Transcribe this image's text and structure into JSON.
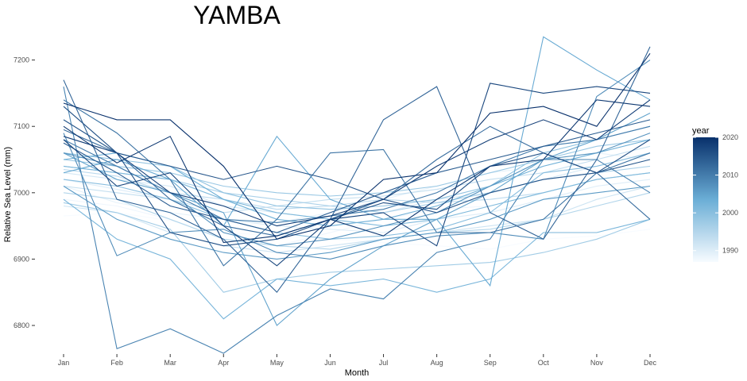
{
  "chart_data": {
    "type": "line",
    "title": "YAMBA",
    "xlabel": "Month",
    "ylabel": "Relative Sea Level (mm)",
    "categories": [
      "Jan",
      "Feb",
      "Mar",
      "Apr",
      "May",
      "Jun",
      "Jul",
      "Aug",
      "Sep",
      "Oct",
      "Nov",
      "Dec"
    ],
    "ylim": [
      6745,
      7245
    ],
    "yticks": [
      6800,
      6900,
      7000,
      7100,
      7200
    ],
    "grid": false,
    "legend": {
      "title": "year",
      "position": "right",
      "ticks": [
        1990,
        2000,
        2010,
        2020
      ],
      "range": [
        1987,
        2020
      ],
      "color_low": "#f7fbff",
      "color_high": "#08306b"
    },
    "series": [
      {
        "year": 1987,
        "values": [
          6965,
          6970,
          6958,
          6940,
          6935,
          6930,
          6925,
          6920,
          6915,
          6930,
          6935,
          6945
        ]
      },
      {
        "year": 1988,
        "values": [
          6990,
          6980,
          6960,
          6930,
          6920,
          6940,
          6960,
          6975,
          6980,
          7000,
          7020,
          7030
        ]
      },
      {
        "year": 1989,
        "values": [
          7010,
          6985,
          6970,
          6960,
          6955,
          6970,
          6990,
          7010,
          7030,
          7040,
          7060,
          7050
        ]
      },
      {
        "year": 1990,
        "values": [
          7020,
          7005,
          6990,
          6960,
          6950,
          6945,
          6940,
          6960,
          6970,
          6990,
          7010,
          7020
        ]
      },
      {
        "year": 1991,
        "values": [
          7030,
          7020,
          7010,
          6980,
          6970,
          6960,
          6970,
          6990,
          7000,
          7020,
          7040,
          7060
        ]
      },
      {
        "year": 1992,
        "values": [
          6980,
          6970,
          6940,
          6920,
          6910,
          6920,
          6930,
          6940,
          6950,
          6960,
          6990,
          7010
        ]
      },
      {
        "year": 1993,
        "values": [
          7010,
          7000,
          6990,
          6970,
          6980,
          6990,
          6995,
          7005,
          7020,
          7030,
          7050,
          7070
        ]
      },
      {
        "year": 1994,
        "values": [
          7035,
          7025,
          7000,
          6990,
          6975,
          6980,
          6990,
          6985,
          6990,
          7000,
          7020,
          7030
        ]
      },
      {
        "year": 1995,
        "values": [
          7000,
          6990,
          6960,
          6930,
          6920,
          6915,
          6930,
          6940,
          6945,
          6960,
          6980,
          7000
        ]
      },
      {
        "year": 1996,
        "values": [
          7040,
          7030,
          7020,
          7000,
          6990,
          6980,
          6970,
          6985,
          7000,
          7020,
          7030,
          7040
        ]
      },
      {
        "year": 1997,
        "values": [
          6985,
          6970,
          6945,
          6850,
          6870,
          6880,
          6885,
          6890,
          6895,
          6910,
          6930,
          6960
        ]
      },
      {
        "year": 1998,
        "values": [
          7050,
          7040,
          7030,
          7010,
          7000,
          6995,
          7000,
          7010,
          7030,
          7050,
          7070,
          7080
        ]
      },
      {
        "year": 1999,
        "values": [
          7060,
          7050,
          7040,
          7000,
          6980,
          6975,
          6980,
          6990,
          7010,
          7060,
          7080,
          7100
        ]
      },
      {
        "year": 2000,
        "values": [
          7020,
          7010,
          6990,
          6960,
          6940,
          6930,
          6935,
          6945,
          6970,
          7030,
          7040,
          7060
        ]
      },
      {
        "year": 2001,
        "values": [
          7040,
          7030,
          7020,
          6990,
          6970,
          6960,
          6950,
          6960,
          6980,
          7000,
          7020,
          7030
        ]
      },
      {
        "year": 2002,
        "values": [
          6990,
          6930,
          6900,
          6810,
          6870,
          6860,
          6870,
          6850,
          6870,
          6940,
          6940,
          6960
        ]
      },
      {
        "year": 2003,
        "values": [
          7050,
          7060,
          7040,
          6990,
          6960,
          6950,
          6960,
          6980,
          7010,
          7040,
          7060,
          7080
        ]
      },
      {
        "year": 2004,
        "values": [
          7030,
          7050,
          7020,
          6950,
          7085,
          6990,
          6960,
          6960,
          6860,
          7235,
          7185,
          7140
        ]
      },
      {
        "year": 2005,
        "values": [
          7060,
          7020,
          7000,
          6970,
          6800,
          6870,
          6920,
          6960,
          7000,
          7050,
          7080,
          7120
        ]
      },
      {
        "year": 2006,
        "values": [
          7010,
          6960,
          6930,
          6910,
          6900,
          6910,
          6930,
          6940,
          6960,
          6990,
          7000,
          7010
        ]
      },
      {
        "year": 2007,
        "values": [
          7060,
          7040,
          7000,
          6940,
          6920,
          6930,
          6950,
          6970,
          7010,
          7050,
          7060,
          7090
        ]
      },
      {
        "year": 2008,
        "values": [
          7090,
          6905,
          6940,
          6945,
          6910,
          6900,
          6920,
          6935,
          6940,
          6930,
          7145,
          7200
        ]
      },
      {
        "year": 2009,
        "values": [
          7160,
          6765,
          6795,
          6758,
          6815,
          6855,
          6840,
          6910,
          6930,
          7050,
          7050,
          7000
        ]
      },
      {
        "year": 2010,
        "values": [
          7080,
          7040,
          7000,
          6960,
          6955,
          6965,
          6975,
          7000,
          7040,
          7070,
          7080,
          7100
        ]
      },
      {
        "year": 2011,
        "values": [
          7140,
          7090,
          7020,
          6890,
          6960,
          7060,
          7065,
          6940,
          6940,
          6960,
          7030,
          7060
        ]
      },
      {
        "year": 2012,
        "values": [
          7095,
          7060,
          6990,
          6950,
          6935,
          6960,
          6990,
          7050,
          7100,
          7060,
          7030,
          6960
        ]
      },
      {
        "year": 2013,
        "values": [
          7170,
          6990,
          6970,
          6930,
          6850,
          6960,
          7110,
          7160,
          6970,
          6930,
          7050,
          7220
        ]
      },
      {
        "year": 2014,
        "values": [
          7075,
          7030,
          6980,
          6960,
          6940,
          6970,
          7000,
          7030,
          7050,
          7070,
          7090,
          7110
        ]
      },
      {
        "year": 2015,
        "values": [
          7110,
          7060,
          7040,
          7020,
          7040,
          7020,
          6990,
          6970,
          7000,
          7020,
          7030,
          7050
        ]
      },
      {
        "year": 2016,
        "values": [
          7130,
          7060,
          6940,
          6920,
          6930,
          6960,
          6985,
          6975,
          7040,
          7060,
          7030,
          7080
        ]
      },
      {
        "year": 2017,
        "values": [
          7080,
          7010,
          7030,
          6950,
          6890,
          6960,
          6970,
          6920,
          7165,
          7150,
          7160,
          7150
        ]
      },
      {
        "year": 2018,
        "values": [
          7085,
          7060,
          7000,
          6980,
          6950,
          6965,
          6990,
          7040,
          7080,
          7110,
          7080,
          7140
        ]
      },
      {
        "year": 2019,
        "values": [
          7100,
          7045,
          7085,
          6925,
          6935,
          6960,
          6935,
          6990,
          7040,
          7050,
          7140,
          7130
        ]
      },
      {
        "year": 2020,
        "values": [
          7135,
          7110,
          7110,
          7040,
          6930,
          6950,
          7020,
          7030,
          7120,
          7130,
          7100,
          7210
        ]
      }
    ]
  }
}
